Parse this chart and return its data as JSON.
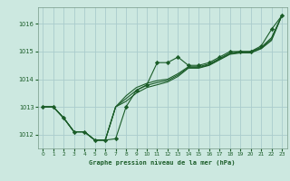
{
  "title": "Graphe pression niveau de la mer (hPa)",
  "bg_color": "#cce8e0",
  "grid_color": "#aacccc",
  "line_color": "#1a5c28",
  "xlim": [
    -0.5,
    23.5
  ],
  "ylim": [
    1011.5,
    1016.6
  ],
  "yticks": [
    1012,
    1013,
    1014,
    1015,
    1016
  ],
  "xticks": [
    0,
    1,
    2,
    3,
    4,
    5,
    6,
    7,
    8,
    9,
    10,
    11,
    12,
    13,
    14,
    15,
    16,
    17,
    18,
    19,
    20,
    21,
    22,
    23
  ],
  "series": [
    [
      1013.0,
      1013.0,
      1012.6,
      1012.1,
      1012.1,
      1011.8,
      1011.8,
      1011.85,
      1013.0,
      1013.6,
      1013.8,
      1014.6,
      1014.6,
      1014.8,
      1014.5,
      1014.5,
      1014.6,
      1014.8,
      1015.0,
      1015.0,
      1015.0,
      1015.2,
      1015.8,
      1016.3
    ],
    [
      1013.0,
      1013.0,
      1012.6,
      1012.1,
      1012.1,
      1011.8,
      1011.8,
      1013.0,
      1013.4,
      1013.7,
      1013.85,
      1013.95,
      1014.0,
      1014.2,
      1014.45,
      1014.45,
      1014.55,
      1014.75,
      1014.95,
      1015.0,
      1015.0,
      1015.15,
      1015.5,
      1016.3
    ],
    [
      1013.0,
      1013.0,
      1012.6,
      1012.1,
      1012.1,
      1011.8,
      1011.8,
      1013.0,
      1013.3,
      1013.6,
      1013.78,
      1013.88,
      1013.95,
      1014.15,
      1014.42,
      1014.42,
      1014.52,
      1014.72,
      1014.92,
      1014.97,
      1014.97,
      1015.12,
      1015.45,
      1016.3
    ],
    [
      1013.0,
      1013.0,
      1012.6,
      1012.1,
      1012.1,
      1011.8,
      1011.8,
      1013.0,
      1013.2,
      1013.5,
      1013.7,
      1013.8,
      1013.9,
      1014.1,
      1014.4,
      1014.4,
      1014.5,
      1014.7,
      1014.9,
      1014.95,
      1014.95,
      1015.1,
      1015.4,
      1016.3
    ]
  ]
}
